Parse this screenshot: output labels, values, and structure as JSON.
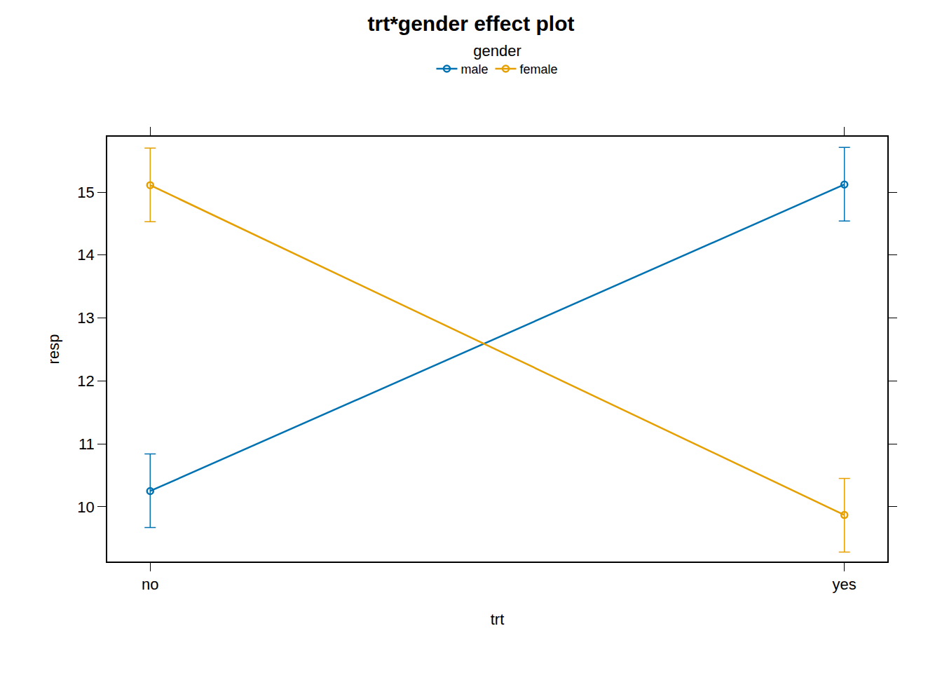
{
  "chart_data": {
    "type": "line",
    "title": "trt*gender effect plot",
    "x_label": "trt",
    "y_label": "resp",
    "legend_title": "gender",
    "legend": "top",
    "grid": false,
    "categories": [
      "no",
      "yes"
    ],
    "series": [
      {
        "name": "male",
        "color": "#0072B2",
        "marker": "circle-open",
        "line_style": "solid",
        "values": [
          10.25,
          15.12
        ],
        "lower": [
          9.67,
          14.54
        ],
        "upper": [
          10.84,
          15.71
        ]
      },
      {
        "name": "female",
        "color": "#E69F00",
        "marker": "circle-open",
        "line_style": "solid",
        "values": [
          15.11,
          9.87
        ],
        "lower": [
          14.53,
          9.28
        ],
        "upper": [
          15.7,
          10.45
        ]
      }
    ],
    "ylim": [
      9.13,
      15.88
    ],
    "yticks": [
      10,
      11,
      12,
      13,
      14,
      15
    ]
  }
}
